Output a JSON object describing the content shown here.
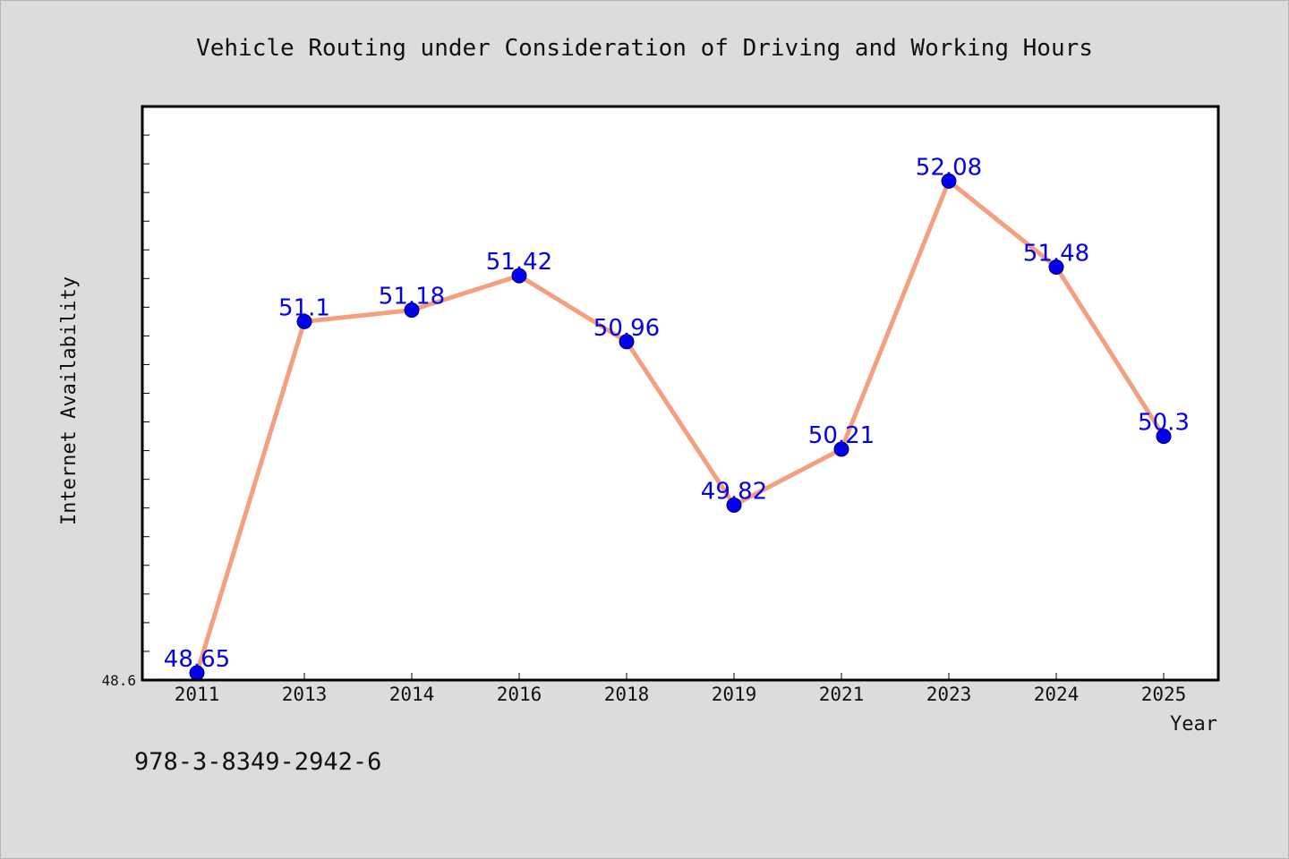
{
  "chart_data": {
    "type": "line",
    "title": "Vehicle Routing under Consideration of Driving and Working Hours",
    "xlabel": "Year",
    "ylabel": "Internet Availability",
    "categories": [
      "2011",
      "2013",
      "2014",
      "2016",
      "2018",
      "2019",
      "2021",
      "2023",
      "2024",
      "2025"
    ],
    "series": [
      {
        "values": [
          48.65,
          51.1,
          51.18,
          51.42,
          50.96,
          49.82,
          50.21,
          52.08,
          51.48,
          50.3
        ],
        "labels": [
          "48.65",
          "51.1",
          "51.18",
          "51.42",
          "50.96",
          "49.82",
          "50.21",
          "52.08",
          "51.48",
          "50.3"
        ]
      }
    ],
    "ylim": [
      48.6,
      52.6
    ],
    "y_tick_labels": [
      "48.6"
    ],
    "grid": false,
    "colors": {
      "line": "#f4a07e",
      "marker": "#0000ee",
      "data_label": "#0000ee",
      "plot_background": "#ffffff",
      "page_background": "#dcdcdc"
    }
  },
  "footer": {
    "isbn": "978-3-8349-2942-6"
  }
}
